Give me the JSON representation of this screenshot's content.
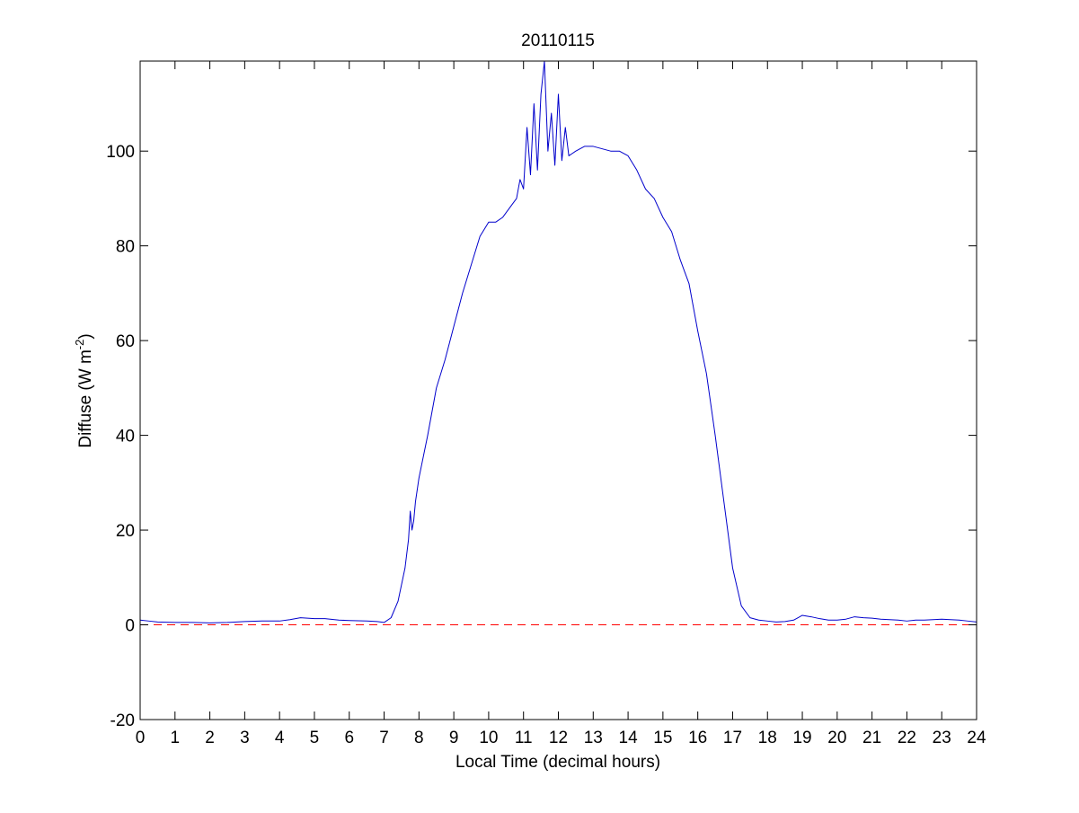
{
  "chart_data": {
    "type": "line",
    "title": "20110115",
    "xlabel": "Local Time (decimal hours)",
    "ylabel": {
      "main": "Diffuse (W m",
      "superscript": "-2",
      "close": ")"
    },
    "xlim": [
      0,
      24
    ],
    "ylim": [
      -20,
      119
    ],
    "x_ticks": [
      0,
      1,
      2,
      3,
      4,
      5,
      6,
      7,
      8,
      9,
      10,
      11,
      12,
      13,
      14,
      15,
      16,
      17,
      18,
      19,
      20,
      21,
      22,
      23,
      24
    ],
    "y_ticks": [
      -20,
      0,
      20,
      40,
      60,
      80,
      100
    ],
    "grid": false,
    "legend": "none",
    "colors": {
      "series": "#0000cc",
      "reference_line": "#ff0000"
    },
    "series": [
      {
        "x": [
          0,
          0.25,
          0.5,
          1,
          1.5,
          2,
          2.5,
          3,
          3.5,
          4,
          4.3,
          4.6,
          5,
          5.3,
          5.7,
          6,
          6.5,
          6.8,
          7,
          7.2,
          7.4,
          7.6,
          7.7,
          7.75,
          7.8,
          7.85,
          7.9,
          8,
          8.25,
          8.5,
          8.75,
          9,
          9.25,
          9.5,
          9.75,
          10,
          10.2,
          10.4,
          10.6,
          10.8,
          10.9,
          11,
          11.1,
          11.2,
          11.3,
          11.4,
          11.5,
          11.6,
          11.7,
          11.8,
          11.9,
          12,
          12.1,
          12.2,
          12.3,
          12.5,
          12.75,
          13,
          13.25,
          13.5,
          13.75,
          14,
          14.25,
          14.5,
          14.75,
          15,
          15.25,
          15.5,
          15.75,
          16,
          16.25,
          16.5,
          16.75,
          17,
          17.25,
          17.5,
          17.75,
          18,
          18.25,
          18.5,
          18.75,
          19,
          19.25,
          19.5,
          19.75,
          20,
          20.25,
          20.5,
          20.75,
          21,
          21.25,
          21.5,
          21.75,
          22,
          22.25,
          22.5,
          22.75,
          23,
          23.25,
          23.5,
          23.75,
          24
        ],
        "y": [
          1.0,
          0.8,
          0.6,
          0.5,
          0.5,
          0.4,
          0.5,
          0.7,
          0.8,
          0.8,
          1.1,
          1.5,
          1.3,
          1.3,
          1.0,
          0.9,
          0.8,
          0.7,
          0.5,
          1.5,
          5,
          12,
          18,
          24,
          20,
          22,
          26,
          31,
          40,
          50,
          56,
          63,
          70,
          76,
          82,
          85,
          85,
          86,
          88,
          90,
          94,
          92,
          105,
          95,
          110,
          96,
          112,
          119,
          100,
          108,
          97,
          112,
          98,
          105,
          99,
          100,
          101,
          101,
          100.5,
          100,
          100,
          99,
          96,
          92,
          90,
          86,
          83,
          77,
          72,
          62,
          53,
          40,
          26,
          12,
          4,
          1.5,
          1.0,
          0.8,
          0.6,
          0.7,
          1.0,
          2.0,
          1.7,
          1.3,
          1.0,
          1.0,
          1.2,
          1.7,
          1.5,
          1.4,
          1.2,
          1.1,
          1.0,
          0.8,
          1.0,
          1.0,
          1.1,
          1.2,
          1.1,
          1.0,
          0.8,
          0.6
        ]
      }
    ],
    "reference_lines": [
      {
        "y": 0,
        "style": "dashed"
      }
    ]
  }
}
